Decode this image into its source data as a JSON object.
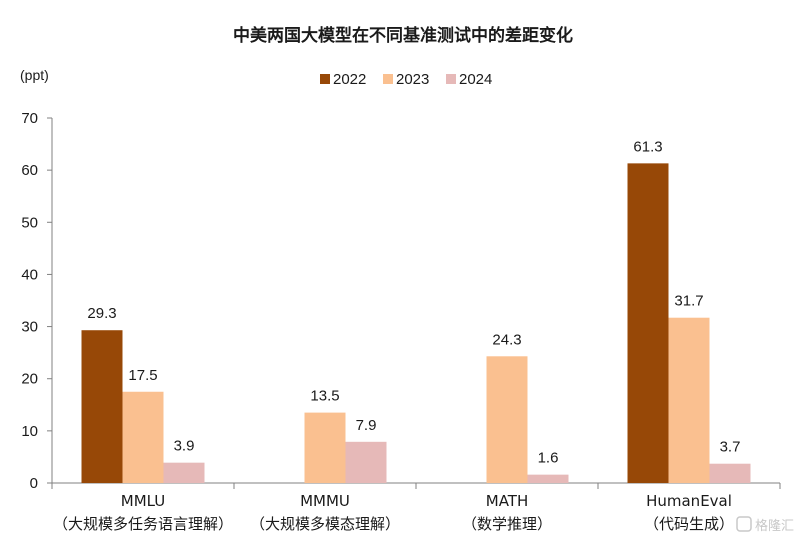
{
  "chart_data": {
    "type": "bar",
    "title": "中美两国大模型在不同基准测试中的差距变化",
    "ylabel": "(ppt)",
    "ylim": [
      0,
      70
    ],
    "yticks": [
      0,
      10,
      20,
      30,
      40,
      50,
      60,
      70
    ],
    "grid": false,
    "legend_position": "top-center",
    "categories": [
      [
        "MMLU",
        "（大规模多任务语言理解）"
      ],
      [
        "MMMU",
        "（大规模多模态理解）"
      ],
      [
        "MATH",
        "（数学推理）"
      ],
      [
        "HumanEval",
        "（代码生成）"
      ]
    ],
    "series": [
      {
        "name": "2022",
        "color": "#974807",
        "values": [
          29.3,
          null,
          null,
          61.3
        ]
      },
      {
        "name": "2023",
        "color": "#FAC090",
        "values": [
          17.5,
          13.5,
          24.3,
          31.7
        ]
      },
      {
        "name": "2024",
        "color": "#E6B9B8",
        "values": [
          3.9,
          7.9,
          1.6,
          3.7
        ]
      }
    ]
  },
  "watermark": "格隆汇"
}
